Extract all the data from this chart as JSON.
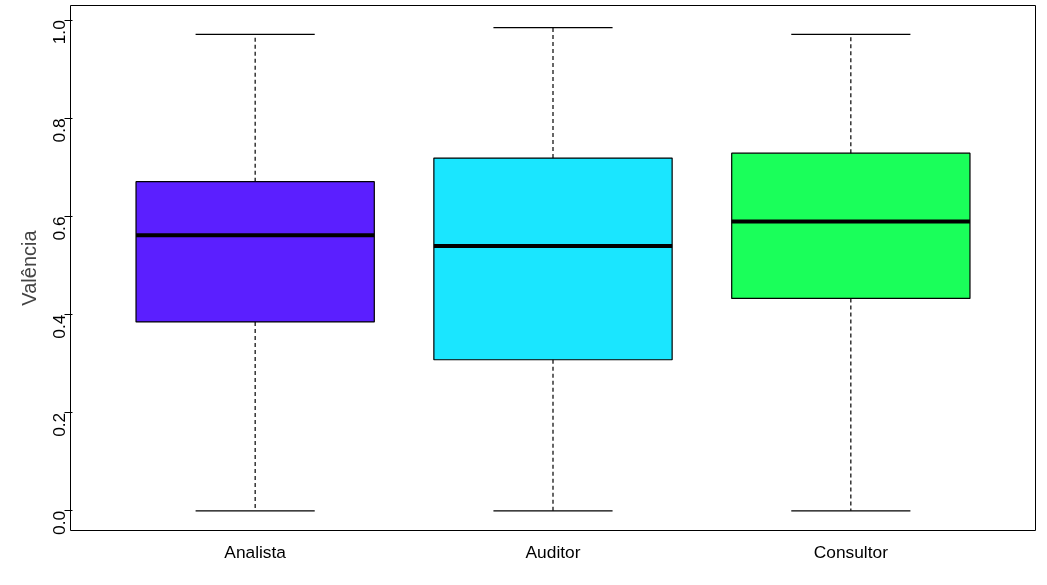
{
  "chart_data": {
    "type": "box",
    "ylabel": "Valência",
    "categories": [
      "Analista",
      "Auditor",
      "Consultor"
    ],
    "colors": [
      "#5b1fff",
      "#1ae6ff",
      "#1aff5a"
    ],
    "boxes": [
      {
        "low": 0.0,
        "q1": 0.385,
        "median": 0.562,
        "q3": 0.671,
        "high": 0.971
      },
      {
        "low": 0.0,
        "q1": 0.308,
        "median": 0.54,
        "q3": 0.719,
        "high": 0.985
      },
      {
        "low": 0.0,
        "q1": 0.433,
        "median": 0.59,
        "q3": 0.729,
        "high": 0.971
      }
    ],
    "ylim": [
      -0.04,
      1.03
    ],
    "yticks": [
      {
        "value": 0,
        "label": "0.0"
      },
      0.2,
      0.4,
      0.6,
      0.8,
      {
        "value": 1,
        "label": "1.0"
      }
    ],
    "grid": false
  }
}
